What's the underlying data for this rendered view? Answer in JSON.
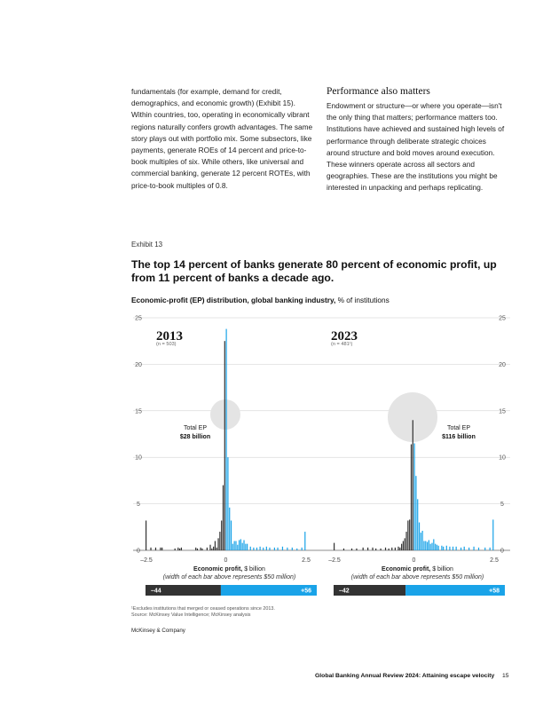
{
  "left_column": {
    "text": "fundamentals (for example, demand for credit, demographics, and economic growth) (Exhibit 15). Within countries, too, operating in economically vibrant regions naturally confers growth advantages. The same story plays out with portfolio mix. Some subsectors, like payments, generate ROEs of 14 percent and price-to-book multiples of six. While others, like universal and commercial banking, generate 12 percent ROTEs, with price-to-book multiples of 0.8."
  },
  "right_column": {
    "heading": "Performance also matters",
    "text": "Endowment or structure—or where you operate—isn't the only thing that matters; performance matters too. Institutions have achieved and sustained high levels of performance through deliberate strategic choices around structure and bold moves around execution. These winners operate across all sectors and geographies. These are the institutions you might be interested in unpacking and perhaps replicating."
  },
  "exhibit": {
    "label": "Exhibit 13",
    "title": "The top 14 percent of banks generate 80 percent of economic profit, up from 11 percent of banks a decade ago.",
    "subtitle_bold": "Economic-profit (EP) distribution, global banking industry,",
    "subtitle_rest": " % of institutions",
    "footnote_1": "¹Excludes institutions that merged or ceased operations since 2013.",
    "footnote_2": "Source: McKinsey Value Intelligence; McKinsey analysis"
  },
  "source_brand": "McKinsey & Company",
  "page_footer": "Global Banking Annual Review 2024: Attaining escape velocity",
  "page_number": "15",
  "colors": {
    "negative": "#333333",
    "positive": "#1aa3e8",
    "grid": "#cccccc",
    "circle": "#e4e4e4"
  },
  "chart_data": [
    {
      "type": "bar",
      "title": "2013",
      "n_label": "(n = 503)",
      "xlabel_bold": "Economic profit,",
      "xlabel_rest": " $ billion",
      "xlabel_note": "(width of each bar above represents $50 million)",
      "xlim": [
        -2.5,
        2.5
      ],
      "ylim": [
        0,
        25
      ],
      "yticks": [
        0,
        5,
        10,
        15,
        20,
        25
      ],
      "xticks": [
        "–2.5",
        "0",
        "2.5"
      ],
      "total_label": "Total EP",
      "total_value": "$28 billion",
      "bar_width": 0.05,
      "negative_bars": [
        [
          -2.5,
          3.2
        ],
        [
          -2.35,
          0.3
        ],
        [
          -2.2,
          0.3
        ],
        [
          -2.05,
          0.3
        ],
        [
          -2.0,
          0.3
        ],
        [
          -1.6,
          0.2
        ],
        [
          -1.5,
          0.3
        ],
        [
          -1.45,
          0.2
        ],
        [
          -1.4,
          0.3
        ],
        [
          -0.95,
          0.3
        ],
        [
          -0.9,
          0.2
        ],
        [
          -0.8,
          0.3
        ],
        [
          -0.75,
          0.2
        ],
        [
          -0.6,
          0.3
        ],
        [
          -0.5,
          0.6
        ],
        [
          -0.45,
          0.2
        ],
        [
          -0.4,
          0.4
        ],
        [
          -0.35,
          1.0
        ],
        [
          -0.3,
          0.3
        ],
        [
          -0.25,
          1.3
        ],
        [
          -0.2,
          2.0
        ],
        [
          -0.15,
          3.2
        ],
        [
          -0.1,
          7.0
        ],
        [
          -0.05,
          22.5
        ]
      ],
      "positive_bars": [
        [
          0.0,
          23.8
        ],
        [
          0.05,
          10.0
        ],
        [
          0.1,
          4.6
        ],
        [
          0.15,
          3.2
        ],
        [
          0.2,
          0.7
        ],
        [
          0.25,
          1.0
        ],
        [
          0.3,
          1.0
        ],
        [
          0.35,
          0.6
        ],
        [
          0.4,
          1.1
        ],
        [
          0.45,
          1.2
        ],
        [
          0.5,
          0.8
        ],
        [
          0.55,
          1.1
        ],
        [
          0.6,
          0.7
        ],
        [
          0.65,
          0.7
        ],
        [
          0.75,
          0.4
        ],
        [
          0.85,
          0.3
        ],
        [
          0.95,
          0.3
        ],
        [
          1.05,
          0.4
        ],
        [
          1.15,
          0.3
        ],
        [
          1.25,
          0.4
        ],
        [
          1.35,
          0.3
        ],
        [
          1.5,
          0.3
        ],
        [
          1.6,
          0.3
        ],
        [
          1.75,
          0.4
        ],
        [
          1.9,
          0.3
        ],
        [
          2.05,
          0.3
        ],
        [
          2.2,
          0.2
        ],
        [
          2.35,
          0.3
        ],
        [
          2.45,
          2.0
        ]
      ],
      "summary_negative": "–44",
      "summary_positive": "+56",
      "summary_neg_share": 0.44
    },
    {
      "type": "bar",
      "title": "2023",
      "n_label": "(n = 481¹)",
      "xlabel_bold": "Economic profit,",
      "xlabel_rest": " $ billion",
      "xlabel_note": "(width of each bar above represents $50 million)",
      "xlim": [
        -2.5,
        2.5
      ],
      "ylim": [
        0,
        25
      ],
      "yticks": [
        0,
        5,
        10,
        15,
        20,
        25
      ],
      "xticks": [
        "–2.5",
        "0",
        "2.5"
      ],
      "total_label": "Total EP",
      "total_value": "$116 billion",
      "bar_width": 0.05,
      "negative_bars": [
        [
          -2.5,
          0.8
        ],
        [
          -2.2,
          0.2
        ],
        [
          -1.95,
          0.2
        ],
        [
          -1.8,
          0.2
        ],
        [
          -1.6,
          0.3
        ],
        [
          -1.45,
          0.3
        ],
        [
          -1.3,
          0.3
        ],
        [
          -1.2,
          0.2
        ],
        [
          -1.05,
          0.2
        ],
        [
          -0.9,
          0.3
        ],
        [
          -0.8,
          0.2
        ],
        [
          -0.7,
          0.3
        ],
        [
          -0.6,
          0.3
        ],
        [
          -0.5,
          0.4
        ],
        [
          -0.45,
          0.3
        ],
        [
          -0.4,
          0.7
        ],
        [
          -0.35,
          1.0
        ],
        [
          -0.3,
          1.3
        ],
        [
          -0.25,
          2.0
        ],
        [
          -0.2,
          3.2
        ],
        [
          -0.15,
          3.3
        ],
        [
          -0.1,
          11.4
        ],
        [
          -0.05,
          14.0
        ]
      ],
      "positive_bars": [
        [
          0.0,
          11.5
        ],
        [
          0.05,
          8.0
        ],
        [
          0.1,
          5.5
        ],
        [
          0.15,
          3.0
        ],
        [
          0.2,
          1.9
        ],
        [
          0.25,
          2.1
        ],
        [
          0.3,
          1.0
        ],
        [
          0.35,
          1.0
        ],
        [
          0.4,
          0.9
        ],
        [
          0.45,
          1.1
        ],
        [
          0.5,
          0.7
        ],
        [
          0.55,
          0.8
        ],
        [
          0.6,
          1.2
        ],
        [
          0.65,
          0.7
        ],
        [
          0.7,
          0.6
        ],
        [
          0.75,
          0.5
        ],
        [
          0.85,
          0.5
        ],
        [
          0.9,
          0.4
        ],
        [
          1.0,
          0.5
        ],
        [
          1.1,
          0.4
        ],
        [
          1.2,
          0.4
        ],
        [
          1.3,
          0.4
        ],
        [
          1.45,
          0.3
        ],
        [
          1.55,
          0.4
        ],
        [
          1.7,
          0.3
        ],
        [
          1.85,
          0.4
        ],
        [
          2.0,
          0.3
        ],
        [
          2.2,
          0.3
        ],
        [
          2.35,
          0.3
        ],
        [
          2.45,
          3.3
        ]
      ],
      "summary_negative": "–42",
      "summary_positive": "+58",
      "summary_neg_share": 0.42
    }
  ]
}
